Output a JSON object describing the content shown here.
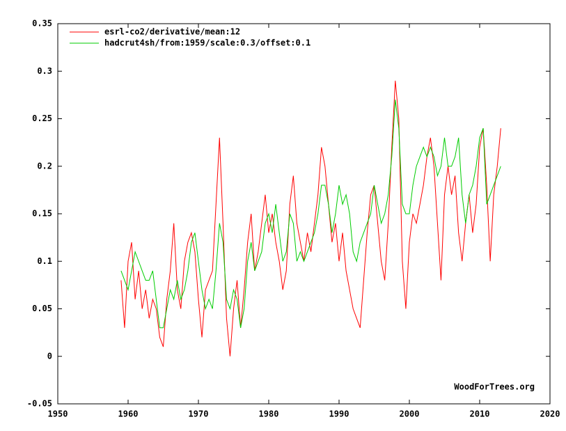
{
  "chart_data": {
    "type": "line",
    "annotation": "WoodForTrees.org",
    "x": [
      1959.0,
      1959.5,
      1960.0,
      1960.5,
      1961.0,
      1961.5,
      1962.0,
      1962.5,
      1963.0,
      1963.5,
      1964.0,
      1964.5,
      1965.0,
      1965.5,
      1966.0,
      1966.5,
      1967.0,
      1967.5,
      1968.0,
      1968.5,
      1969.0,
      1969.5,
      1970.0,
      1970.5,
      1971.0,
      1971.5,
      1972.0,
      1972.5,
      1973.0,
      1973.5,
      1974.0,
      1974.5,
      1975.0,
      1975.5,
      1976.0,
      1976.5,
      1977.0,
      1977.5,
      1978.0,
      1978.5,
      1979.0,
      1979.5,
      1980.0,
      1980.5,
      1981.0,
      1981.5,
      1982.0,
      1982.5,
      1983.0,
      1983.5,
      1984.0,
      1984.5,
      1985.0,
      1985.5,
      1986.0,
      1986.5,
      1987.0,
      1987.5,
      1988.0,
      1988.5,
      1989.0,
      1989.5,
      1990.0,
      1990.5,
      1991.0,
      1991.5,
      1992.0,
      1992.5,
      1993.0,
      1993.5,
      1994.0,
      1994.5,
      1995.0,
      1995.5,
      1996.0,
      1996.5,
      1997.0,
      1997.5,
      1998.0,
      1998.5,
      1999.0,
      1999.5,
      2000.0,
      2000.5,
      2001.0,
      2001.5,
      2002.0,
      2002.5,
      2003.0,
      2003.5,
      2004.0,
      2004.5,
      2005.0,
      2005.5,
      2006.0,
      2006.5,
      2007.0,
      2007.5,
      2008.0,
      2008.5,
      2009.0,
      2009.5,
      2010.0,
      2010.5,
      2011.0,
      2011.5,
      2012.0,
      2012.5,
      2013.0
    ],
    "series": [
      {
        "name": "esrl-co2/derivative/mean:12",
        "color": "#ff0000",
        "values": [
          0.08,
          0.03,
          0.1,
          0.12,
          0.06,
          0.09,
          0.05,
          0.07,
          0.04,
          0.06,
          0.05,
          0.02,
          0.01,
          0.06,
          0.09,
          0.14,
          0.07,
          0.05,
          0.1,
          0.12,
          0.13,
          0.11,
          0.06,
          0.02,
          0.07,
          0.08,
          0.09,
          0.16,
          0.23,
          0.14,
          0.04,
          0.0,
          0.05,
          0.08,
          0.03,
          0.07,
          0.12,
          0.15,
          0.09,
          0.11,
          0.14,
          0.17,
          0.13,
          0.15,
          0.12,
          0.1,
          0.07,
          0.09,
          0.16,
          0.19,
          0.14,
          0.12,
          0.1,
          0.13,
          0.11,
          0.14,
          0.17,
          0.22,
          0.2,
          0.16,
          0.12,
          0.14,
          0.1,
          0.13,
          0.09,
          0.07,
          0.05,
          0.04,
          0.03,
          0.08,
          0.13,
          0.17,
          0.18,
          0.14,
          0.1,
          0.08,
          0.14,
          0.22,
          0.29,
          0.25,
          0.1,
          0.05,
          0.12,
          0.15,
          0.14,
          0.16,
          0.18,
          0.21,
          0.23,
          0.2,
          0.14,
          0.08,
          0.17,
          0.2,
          0.17,
          0.19,
          0.13,
          0.1,
          0.14,
          0.17,
          0.13,
          0.16,
          0.22,
          0.24,
          0.18,
          0.1,
          0.17,
          0.2,
          0.24
        ]
      },
      {
        "name": "hadcrut4sh/from:1959/scale:0.3/offset:0.1",
        "color": "#00cc00",
        "values": [
          0.09,
          0.08,
          0.07,
          0.09,
          0.11,
          0.1,
          0.09,
          0.08,
          0.08,
          0.09,
          0.06,
          0.03,
          0.03,
          0.05,
          0.07,
          0.06,
          0.08,
          0.06,
          0.07,
          0.09,
          0.12,
          0.13,
          0.1,
          0.07,
          0.05,
          0.06,
          0.05,
          0.09,
          0.14,
          0.12,
          0.06,
          0.05,
          0.07,
          0.06,
          0.03,
          0.05,
          0.1,
          0.12,
          0.09,
          0.1,
          0.11,
          0.14,
          0.15,
          0.13,
          0.16,
          0.13,
          0.1,
          0.11,
          0.15,
          0.14,
          0.1,
          0.11,
          0.1,
          0.11,
          0.12,
          0.13,
          0.15,
          0.18,
          0.18,
          0.16,
          0.13,
          0.15,
          0.18,
          0.16,
          0.17,
          0.15,
          0.11,
          0.1,
          0.12,
          0.13,
          0.14,
          0.15,
          0.18,
          0.16,
          0.14,
          0.15,
          0.17,
          0.21,
          0.27,
          0.24,
          0.16,
          0.15,
          0.15,
          0.18,
          0.2,
          0.21,
          0.22,
          0.21,
          0.22,
          0.21,
          0.19,
          0.2,
          0.23,
          0.2,
          0.2,
          0.21,
          0.23,
          0.17,
          0.14,
          0.17,
          0.18,
          0.2,
          0.23,
          0.24,
          0.16,
          0.17,
          0.18,
          0.19,
          0.2
        ]
      }
    ],
    "xlim": [
      1950,
      2020
    ],
    "xticks": [
      1950,
      1960,
      1970,
      1980,
      1990,
      2000,
      2010,
      2020
    ],
    "ylim": [
      -0.05,
      0.35
    ],
    "yticks": [
      -0.05,
      0,
      0.05,
      0.1,
      0.15,
      0.2,
      0.25,
      0.3,
      0.35
    ],
    "legend": "upper left"
  }
}
